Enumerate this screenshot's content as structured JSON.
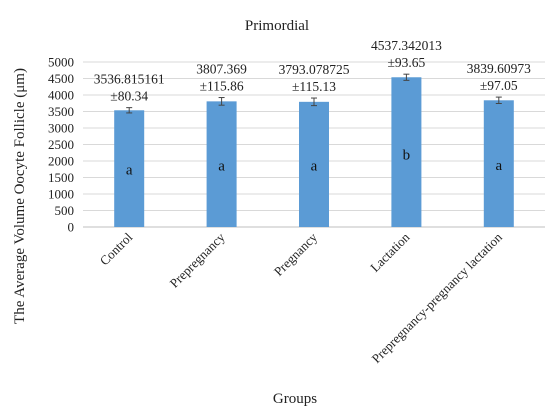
{
  "chart_data": {
    "type": "bar",
    "title": "Primordial",
    "xlabel": "Groups",
    "ylabel": "The Average Volume Oocyte Follicle (μm)",
    "ylim": [
      0,
      5000
    ],
    "yticks": [
      0,
      500,
      1000,
      1500,
      2000,
      2500,
      3000,
      3500,
      4000,
      4500,
      5000
    ],
    "grid": true,
    "legend": "none",
    "bar_color": "#5b9bd5",
    "categories": [
      "Control",
      "Prepregnancy",
      "Pregnancy",
      "Lactation",
      "Prepregnancy-pregnancy lactation"
    ],
    "values": [
      3536.815161,
      3807.369,
      3793.078725,
      4537.342013,
      3839.60973
    ],
    "errors": [
      80.34,
      115.86,
      115.13,
      93.65,
      97.05
    ],
    "value_labels": [
      "3536.815161",
      "3807.369",
      "3793.078725",
      "4537.342013",
      "3839.60973"
    ],
    "error_labels": [
      "±80.34",
      "±115.86",
      "±115.13",
      "±93.65",
      "±97.05"
    ],
    "letters": [
      "a",
      "a",
      "a",
      "b",
      "a"
    ]
  }
}
